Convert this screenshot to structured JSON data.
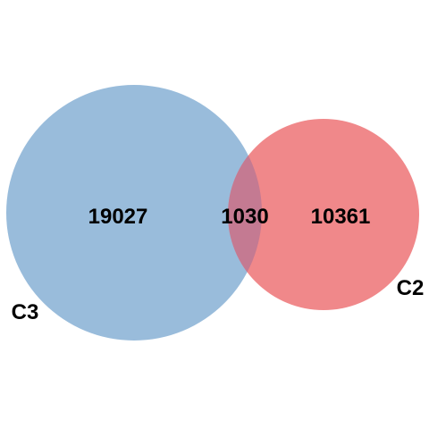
{
  "diagram": {
    "type": "venn",
    "sets": [
      {
        "id": "set-c3",
        "label": "C3",
        "only_count": "19027",
        "color": "#93b8d9"
      },
      {
        "id": "set-c2",
        "label": "C2",
        "only_count": "10361",
        "color": "#ef7e80"
      }
    ],
    "intersection": {
      "count": "1030",
      "color": "#c47a92"
    }
  }
}
